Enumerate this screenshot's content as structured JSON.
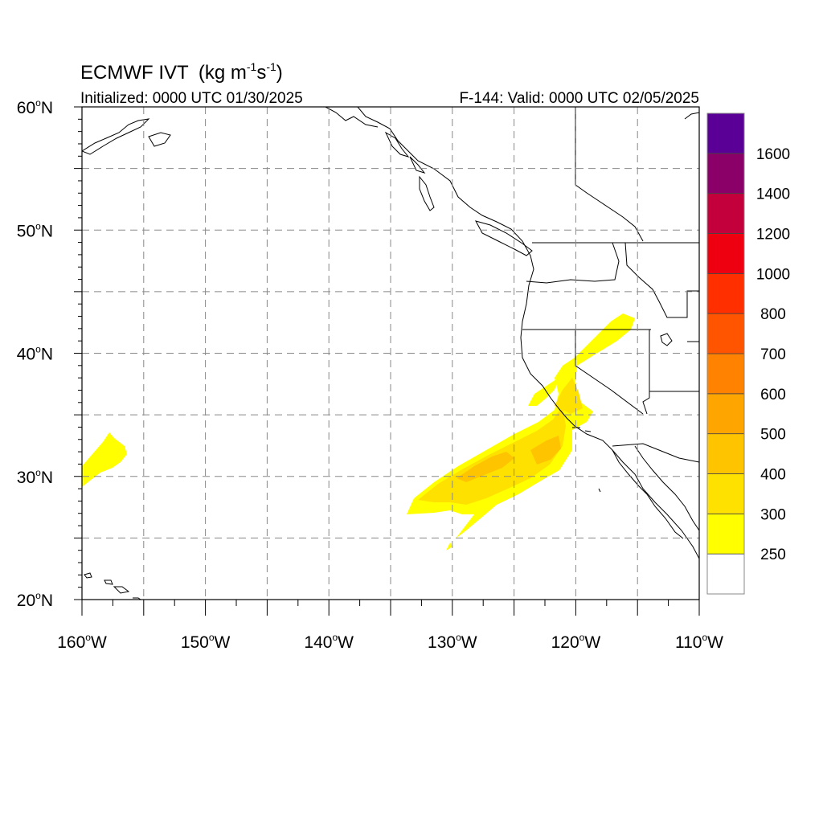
{
  "title": {
    "main": "ECMWF IVT",
    "units_open": "(kg m",
    "sup1": "-1",
    "mid": "s",
    "sup2": "-1",
    "close": ")"
  },
  "init_text": "Initialized: 0000 UTC 01/30/2025",
  "valid_text": "F-144: Valid: 0000 UTC 02/05/2025",
  "map": {
    "lon_range": [
      -160,
      -110
    ],
    "lat_range": [
      20,
      60
    ],
    "grid_lons": [
      -155,
      -150,
      -145,
      -140,
      -135,
      -130,
      -125,
      -120,
      -115
    ],
    "grid_lats": [
      25,
      30,
      35,
      40,
      45,
      50,
      55
    ],
    "x_ticks": [
      {
        "lon": -160,
        "num": "160",
        "deg": "o",
        "hem": "W"
      },
      {
        "lon": -150,
        "num": "150",
        "deg": "o",
        "hem": "W"
      },
      {
        "lon": -140,
        "num": "140",
        "deg": "o",
        "hem": "W"
      },
      {
        "lon": -130,
        "num": "130",
        "deg": "o",
        "hem": "W"
      },
      {
        "lon": -120,
        "num": "120",
        "deg": "o",
        "hem": "W"
      },
      {
        "lon": -110,
        "num": "110",
        "deg": "o",
        "hem": "W"
      }
    ],
    "y_ticks": [
      {
        "lat": 60,
        "num": "60",
        "deg": "o",
        "hem": "N"
      },
      {
        "lat": 50,
        "num": "50",
        "deg": "o",
        "hem": "N"
      },
      {
        "lat": 40,
        "num": "40",
        "deg": "o",
        "hem": "N"
      },
      {
        "lat": 30,
        "num": "30",
        "deg": "o",
        "hem": "N"
      },
      {
        "lat": 20,
        "num": "20",
        "deg": "o",
        "hem": "N"
      }
    ]
  },
  "colorbar": {
    "colors": [
      "#ffffff",
      "#ffff00",
      "#ffe100",
      "#ffc400",
      "#ffa500",
      "#ff8200",
      "#ff5500",
      "#ff2f00",
      "#ee0011",
      "#c4003c",
      "#8b0068",
      "#5a0096"
    ],
    "labels": [
      "250",
      "300",
      "400",
      "500",
      "600",
      "700",
      "800",
      "1000",
      "1200",
      "1400",
      "1600"
    ]
  },
  "ivt_regions": [
    {
      "level": "250",
      "color": "#ffff00"
    },
    {
      "level": "300",
      "color": "#ffe100"
    },
    {
      "level": "400",
      "color": "#ffc400"
    }
  ]
}
